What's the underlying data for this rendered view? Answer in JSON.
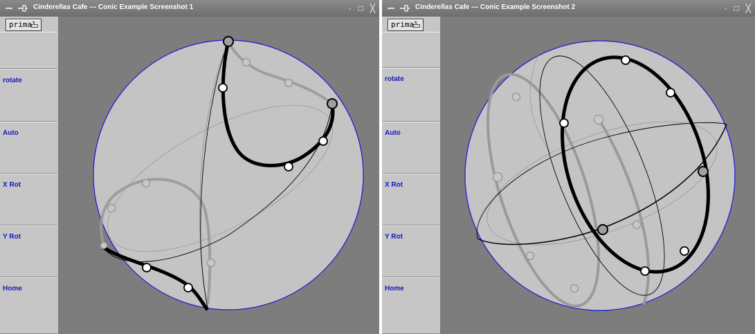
{
  "windows": [
    {
      "title": "Cinderellas Cafe --- Conic Example Screenshot 1",
      "mode_select": "primal",
      "buttons": [
        "rotate",
        "Auto",
        "X Rot",
        "Y Rot",
        "Home"
      ]
    },
    {
      "title": "Cinderellas Cafe --- Conic Example Screenshot 2",
      "mode_select": "primal",
      "buttons": [
        "rotate",
        "Auto",
        "X Rot",
        "Y Rot",
        "Home"
      ]
    }
  ],
  "titlebar_icons": {
    "left": [
      "menu-icon",
      "pin-icon"
    ],
    "right": [
      "minimize-icon",
      "maximize-icon",
      "close-icon"
    ]
  },
  "colors": {
    "canvas_background": "#7d7d7d",
    "sphere_fill": "#c4c4c4",
    "sphere_outline": "#1a1ad8",
    "button_text": "#1818c0",
    "front_curve": "#000000",
    "back_curve": "#9a9a9a"
  }
}
